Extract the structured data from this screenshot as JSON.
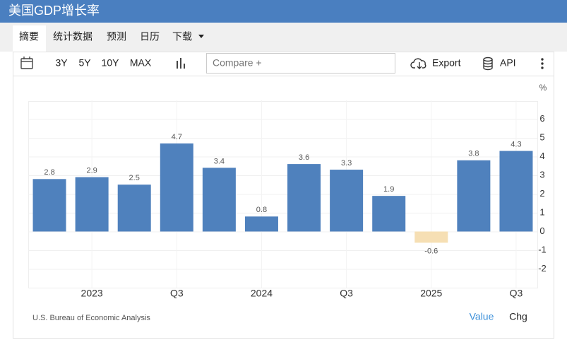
{
  "header": {
    "title": "美国GDP增长率"
  },
  "tabs": [
    "摘要",
    "统计数据",
    "预测",
    "日历",
    "下载"
  ],
  "toolbar": {
    "ranges": [
      "3Y",
      "5Y",
      "10Y",
      "MAX"
    ],
    "compare": "Compare +",
    "export": "Export",
    "api": "API"
  },
  "chart_data": {
    "type": "bar",
    "unit": "%",
    "categories": [
      null,
      "2023",
      null,
      "Q3",
      null,
      "2024",
      null,
      "Q3",
      null,
      "2025",
      null,
      "Q3"
    ],
    "values": [
      2.8,
      2.9,
      2.5,
      4.7,
      3.4,
      0.8,
      3.6,
      3.3,
      1.9,
      -0.6,
      3.8,
      4.3
    ],
    "color": "#4f81bd",
    "negative_color": "#f6dfb4",
    "ylim": [
      -3,
      7
    ],
    "yticks": [
      -2,
      -1,
      0,
      1,
      2,
      3,
      4,
      5,
      6
    ],
    "grid": true
  },
  "footer": {
    "source": "U.S. Bureau of Economic Analysis",
    "toggles": [
      "Value",
      "Chg"
    ]
  }
}
